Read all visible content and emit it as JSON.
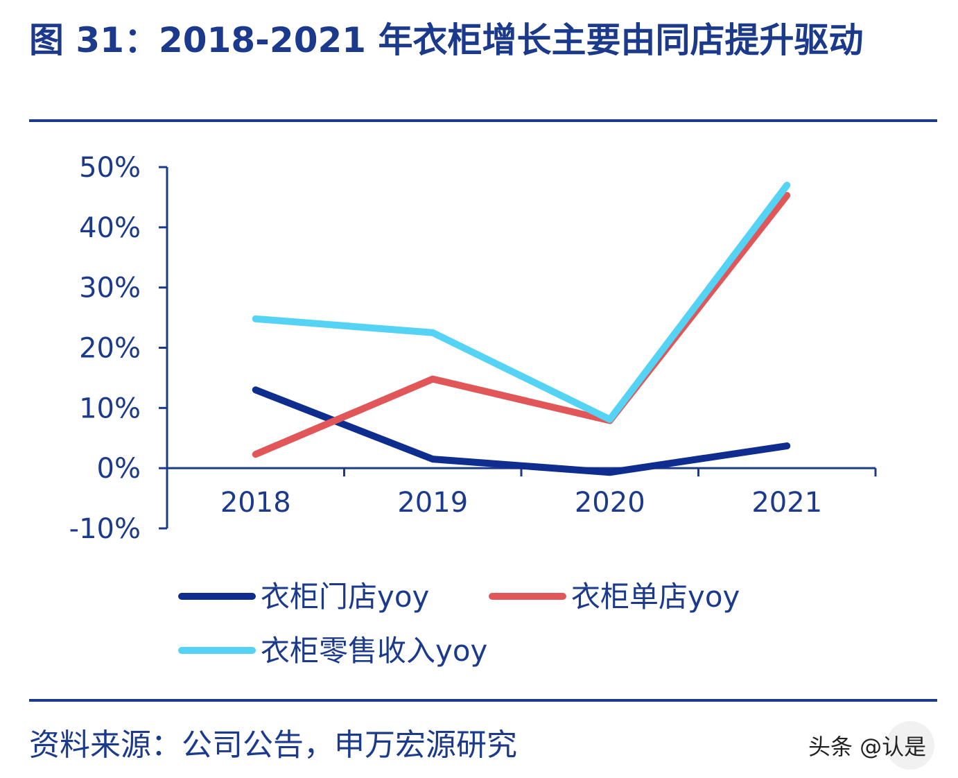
{
  "title": "图 31：2018-2021 年衣柜增长主要由同店提升驱动",
  "source": "资料来源：公司公告，申万宏源研究",
  "watermark": "头条 @认是",
  "chart_data": {
    "type": "line",
    "categories": [
      "2018",
      "2019",
      "2020",
      "2021"
    ],
    "series": [
      {
        "name": "衣柜门店yoy",
        "color": "#0f2c8f",
        "values": [
          13.0,
          1.5,
          -0.7,
          3.7
        ]
      },
      {
        "name": "衣柜单店yoy",
        "color": "#e15759",
        "values": [
          2.3,
          14.8,
          7.9,
          45.3
        ]
      },
      {
        "name": "衣柜零售收入yoy",
        "color": "#55d3f5",
        "values": [
          24.8,
          22.5,
          8.1,
          47.0
        ]
      }
    ],
    "yticks": [
      "50%",
      "40%",
      "30%",
      "20%",
      "10%",
      "0%",
      "-10%"
    ],
    "ytick_values": [
      50,
      40,
      30,
      20,
      10,
      0,
      -10
    ],
    "ylim": [
      -10,
      50
    ],
    "xlabel": "",
    "ylabel": "",
    "legend_position": "bottom",
    "axis_color": "#1b3a8c"
  }
}
